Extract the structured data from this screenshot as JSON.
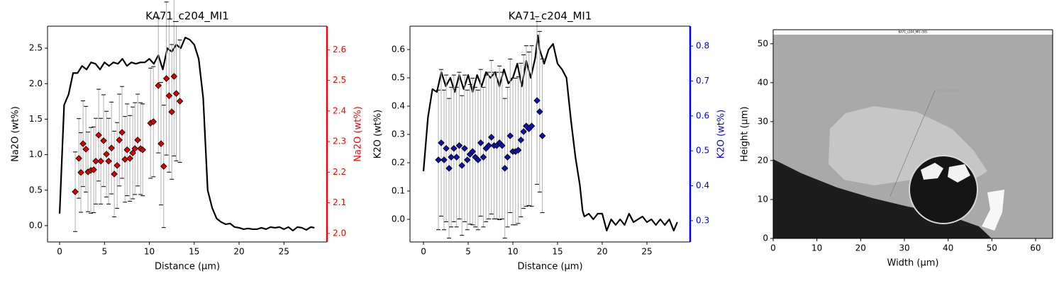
{
  "chart_data": [
    {
      "type": "line",
      "title": "KA71_c204_MI1",
      "x_label": "Distance (µm)",
      "y_label": "Na2O (wt%)",
      "y2_label": "Na2O (wt%)",
      "y2_color": "red",
      "xlim": [
        -1.35,
        29.8
      ],
      "ylim": [
        -0.23,
        2.81
      ],
      "y2lim": [
        1.972,
        2.677
      ],
      "xticks": [
        0,
        5,
        10,
        15,
        20,
        25
      ],
      "yticks": [
        {
          "value": 0,
          "label": "0.0"
        },
        0.5,
        {
          "value": 1,
          "label": "1.0"
        },
        1.5,
        {
          "value": 2,
          "label": "2.0"
        },
        2.5
      ],
      "y2ticks": [
        {
          "value": 2,
          "label": "2.0"
        },
        2.1,
        2.2,
        2.3,
        2.4,
        2.5,
        2.6
      ],
      "series": [
        {
          "color": "black",
          "x": [
            0,
            0.5,
            1,
            1.5,
            2,
            2.5,
            3,
            3.5,
            4,
            4.5,
            5,
            5.5,
            6,
            6.5,
            7,
            7.5,
            8,
            8.5,
            9,
            9.5,
            10,
            10.5,
            11,
            11.5,
            12,
            12.5,
            13,
            13.5,
            14,
            14.5,
            15,
            15.5,
            16,
            16.5,
            17,
            17.5,
            18,
            18.5,
            19,
            19.5,
            20,
            20.5,
            21,
            21.5,
            22,
            22.5,
            23,
            23.5,
            24,
            24.5,
            25,
            25.5,
            26,
            26.5,
            27,
            27.5,
            28,
            28.4
          ],
          "values": [
            0.17,
            1.7,
            1.85,
            2.15,
            2.15,
            2.25,
            2.2,
            2.3,
            2.28,
            2.2,
            2.3,
            2.25,
            2.3,
            2.28,
            2.35,
            2.25,
            2.3,
            2.28,
            2.3,
            2.3,
            2.35,
            2.28,
            2.4,
            2.2,
            2.5,
            2.45,
            2.55,
            2.5,
            2.65,
            2.62,
            2.55,
            2.35,
            1.8,
            0.5,
            0.25,
            0.1,
            0.05,
            0.02,
            0.03,
            -0.02,
            -0.03,
            -0.05,
            -0.04,
            -0.05,
            -0.05,
            -0.03,
            -0.05,
            -0.02,
            -0.03,
            -0.02,
            -0.05,
            -0.02,
            -0.07,
            -0.02,
            -0.03,
            -0.06,
            -0.02,
            -0.03
          ]
        },
        {
          "color": "#dd0000",
          "axis": "y2",
          "marker": "diamond",
          "x": [
            1.74,
            2.14,
            2.37,
            2.61,
            2.93,
            3.16,
            3.48,
            3.8,
            4.03,
            4.35,
            4.59,
            4.9,
            5.22,
            5.46,
            5.78,
            6.09,
            6.41,
            6.65,
            6.96,
            7.28,
            7.52,
            7.83,
            8.15,
            8.39,
            8.7,
            9.02,
            9.26,
            10.13,
            10.45,
            11.0,
            11.3,
            11.6,
            11.9,
            12.2,
            12.5,
            12.75,
            13.0,
            13.4
          ],
          "values": [
            2.136,
            2.245,
            2.199,
            2.293,
            2.275,
            2.201,
            2.206,
            2.208,
            2.236,
            2.321,
            2.236,
            2.303,
            2.259,
            2.236,
            2.279,
            2.194,
            2.222,
            2.305,
            2.33,
            2.242,
            2.273,
            2.245,
            2.263,
            2.277,
            2.305,
            2.277,
            2.273,
            2.36,
            2.365,
            2.483,
            2.293,
            2.219,
            2.506,
            2.45,
            2.397,
            2.513,
            2.457,
            2.432
          ],
          "errors": [
            0.13,
            0.13,
            0.13,
            0.14,
            0.14,
            0.13,
            0.14,
            0.14,
            0.14,
            0.15,
            0.14,
            0.15,
            0.14,
            0.14,
            0.15,
            0.14,
            0.14,
            0.15,
            0.15,
            0.14,
            0.15,
            0.14,
            0.15,
            0.15,
            0.15,
            0.15,
            0.15,
            0.18,
            0.18,
            0.22,
            0.2,
            0.2,
            0.25,
            0.25,
            0.22,
            0.26,
            0.22,
            0.2
          ]
        }
      ]
    },
    {
      "type": "line",
      "title": "KA71_c204_MI1",
      "x_label": "Distance (µm)",
      "y_label": "K2O (wt%)",
      "y2_label": "K2O (wt%)",
      "y2_color": "blue",
      "xlim": [
        -1.51,
        29.84
      ],
      "ylim": [
        -0.08,
        0.6825
      ],
      "y2lim": [
        0.239,
        0.857
      ],
      "xticks": [
        0,
        5,
        10,
        15,
        20,
        25
      ],
      "yticks": [
        {
          "value": 0,
          "label": "0.0"
        },
        0.1,
        0.2,
        0.3,
        0.4,
        0.5,
        0.6
      ],
      "y2ticks": [
        0.3,
        0.4,
        0.5,
        0.6,
        0.7,
        0.8
      ],
      "series": [
        {
          "color": "black",
          "x": [
            0,
            0.5,
            1,
            1.5,
            2,
            2.5,
            3,
            3.5,
            4,
            4.5,
            5,
            5.5,
            6,
            6.5,
            7,
            7.5,
            8,
            8.5,
            9,
            9.5,
            10,
            10.5,
            11,
            11.5,
            12,
            12.5,
            12.8,
            13,
            13.5,
            14,
            14.5,
            15,
            15.5,
            16,
            16.5,
            17,
            17.5,
            17.8,
            18,
            18.5,
            19,
            19.5,
            20,
            20.5,
            21,
            21.5,
            22,
            22.5,
            23,
            23.5,
            24,
            24.5,
            25,
            25.5,
            26,
            26.5,
            27,
            27.5,
            28,
            28.4
          ],
          "values": [
            0.17,
            0.36,
            0.46,
            0.45,
            0.52,
            0.47,
            0.5,
            0.45,
            0.51,
            0.46,
            0.51,
            0.45,
            0.51,
            0.47,
            0.52,
            0.5,
            0.52,
            0.47,
            0.53,
            0.48,
            0.5,
            0.55,
            0.47,
            0.56,
            0.5,
            0.57,
            0.65,
            0.6,
            0.55,
            0.6,
            0.62,
            0.55,
            0.53,
            0.5,
            0.35,
            0.22,
            0.12,
            0.03,
            0.01,
            0.02,
            0,
            0.02,
            0.02,
            -0.04,
            0,
            -0.02,
            0,
            -0.02,
            0.02,
            -0.01,
            0,
            0.01,
            -0.01,
            0,
            -0.02,
            0,
            -0.02,
            0,
            -0.04,
            -0.01
          ]
        },
        {
          "color": "#1010b0",
          "axis": "y2",
          "marker": "diamond",
          "x": [
            1.67,
            1.98,
            2.3,
            2.54,
            2.86,
            3.1,
            3.4,
            3.7,
            4.0,
            4.3,
            4.6,
            4.9,
            5.2,
            5.5,
            5.8,
            6.1,
            6.4,
            6.7,
            7.0,
            7.3,
            7.6,
            7.9,
            8.2,
            8.5,
            8.8,
            9.1,
            9.4,
            9.7,
            10.0,
            10.3,
            10.6,
            10.9,
            11.2,
            11.5,
            11.8,
            12.1,
            12.7,
            13.0,
            13.3
          ],
          "values": [
            0.474,
            0.523,
            0.474,
            0.507,
            0.45,
            0.482,
            0.507,
            0.482,
            0.515,
            0.458,
            0.507,
            0.474,
            0.49,
            0.498,
            0.482,
            0.474,
            0.523,
            0.482,
            0.507,
            0.515,
            0.539,
            0.515,
            0.515,
            0.523,
            0.515,
            0.45,
            0.482,
            0.543,
            0.498,
            0.498,
            0.502,
            0.531,
            0.555,
            0.571,
            0.563,
            0.571,
            0.644,
            0.612,
            0.543
          ],
          "errors": [
            0.2,
            0.21,
            0.2,
            0.21,
            0.2,
            0.2,
            0.21,
            0.2,
            0.21,
            0.2,
            0.21,
            0.2,
            0.2,
            0.21,
            0.2,
            0.2,
            0.21,
            0.2,
            0.21,
            0.21,
            0.22,
            0.21,
            0.21,
            0.22,
            0.21,
            0.2,
            0.2,
            0.22,
            0.21,
            0.21,
            0.21,
            0.22,
            0.22,
            0.23,
            0.22,
            0.23,
            0.24,
            0.23,
            0.22
          ]
        }
      ]
    },
    {
      "type": "image",
      "x_label": "Width (µm)",
      "y_label": "Height (µm)",
      "image_title": "KA71_c204_MI1 (SE)",
      "line_label": "KA71_c204_MI1",
      "xlim": [
        0,
        63.9
      ],
      "ylim": [
        0,
        53.6
      ],
      "xticks": [
        0,
        10,
        20,
        30,
        40,
        50,
        60
      ],
      "yticks": [
        0,
        10,
        20,
        30,
        40,
        50
      ]
    }
  ]
}
